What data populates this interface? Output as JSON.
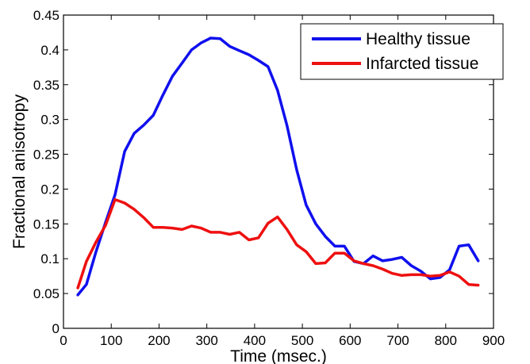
{
  "chart_data": {
    "type": "line",
    "title": "",
    "xlabel": "Time (msec.)",
    "ylabel": "Fractional anisotropy",
    "xlim": [
      0,
      900
    ],
    "ylim": [
      0,
      0.45
    ],
    "xticks": [
      0,
      100,
      200,
      300,
      400,
      500,
      600,
      700,
      800,
      900
    ],
    "xtick_labels": [
      "0",
      "100",
      "200",
      "300",
      "400",
      "500",
      "600",
      "700",
      "800",
      "900"
    ],
    "yticks": [
      0,
      0.05,
      0.1,
      0.15,
      0.2,
      0.25,
      0.3,
      0.35,
      0.4,
      0.45
    ],
    "ytick_labels": [
      "0",
      "0.05",
      "0.1",
      "0.15",
      "0.2",
      "0.25",
      "0.3",
      "0.35",
      "0.4",
      "0.45"
    ],
    "grid": false,
    "legend_position": "top-right",
    "series": [
      {
        "name": "Healthy tissue",
        "color": "#1010ee",
        "x": [
          30,
          48,
          68,
          88,
          108,
          128,
          148,
          168,
          188,
          208,
          228,
          248,
          268,
          288,
          308,
          328,
          348,
          368,
          388,
          408,
          428,
          448,
          468,
          488,
          508,
          528,
          548,
          568,
          588,
          608,
          628,
          648,
          668,
          688,
          708,
          728,
          748,
          768,
          788,
          808,
          828,
          848,
          868
        ],
        "y": [
          0.048,
          0.063,
          0.11,
          0.152,
          0.192,
          0.254,
          0.28,
          0.292,
          0.306,
          0.335,
          0.362,
          0.381,
          0.4,
          0.41,
          0.417,
          0.416,
          0.405,
          0.399,
          0.393,
          0.385,
          0.376,
          0.342,
          0.291,
          0.228,
          0.177,
          0.15,
          0.132,
          0.118,
          0.118,
          0.096,
          0.093,
          0.104,
          0.097,
          0.099,
          0.102,
          0.09,
          0.082,
          0.071,
          0.073,
          0.084,
          0.118,
          0.12,
          0.097
        ]
      },
      {
        "name": "Infarcted tissue",
        "color": "#ee1010",
        "x": [
          30,
          48,
          68,
          88,
          108,
          128,
          148,
          168,
          188,
          208,
          228,
          248,
          268,
          288,
          308,
          328,
          348,
          368,
          388,
          408,
          428,
          448,
          468,
          488,
          508,
          528,
          548,
          568,
          588,
          608,
          628,
          648,
          668,
          688,
          708,
          728,
          748,
          768,
          788,
          808,
          828,
          848,
          868
        ],
        "y": [
          0.058,
          0.096,
          0.124,
          0.148,
          0.185,
          0.18,
          0.171,
          0.159,
          0.145,
          0.145,
          0.144,
          0.142,
          0.147,
          0.144,
          0.138,
          0.138,
          0.135,
          0.138,
          0.127,
          0.13,
          0.151,
          0.16,
          0.142,
          0.12,
          0.11,
          0.093,
          0.094,
          0.108,
          0.108,
          0.097,
          0.093,
          0.09,
          0.085,
          0.079,
          0.076,
          0.077,
          0.077,
          0.075,
          0.076,
          0.081,
          0.075,
          0.063,
          0.062
        ]
      }
    ]
  }
}
